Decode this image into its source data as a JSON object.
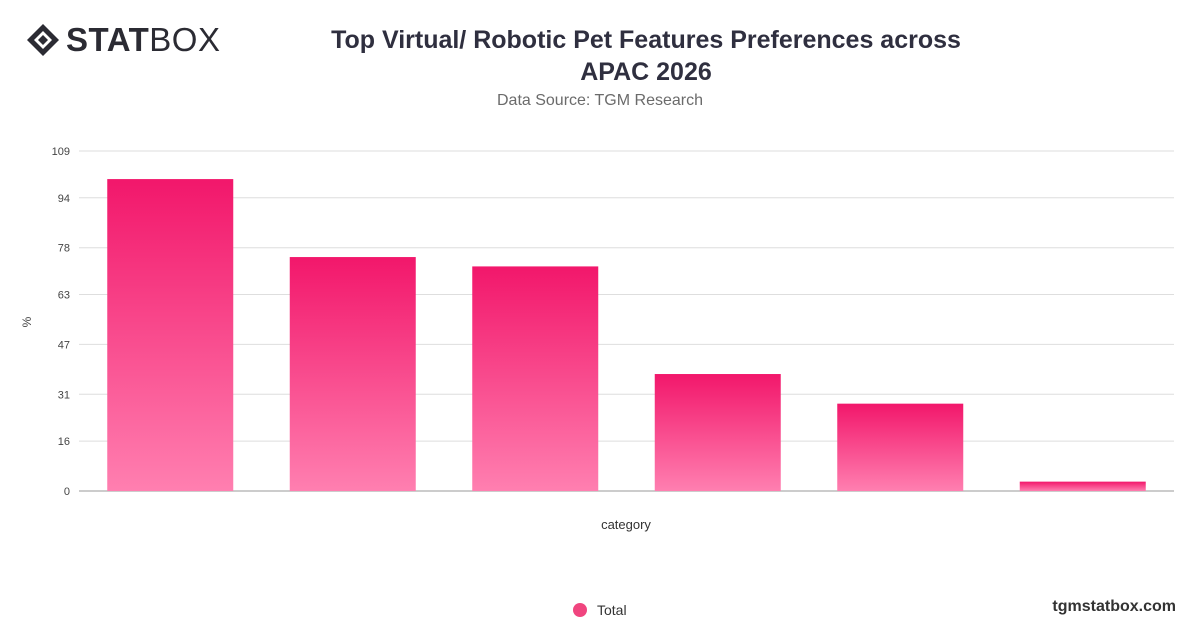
{
  "brand": {
    "logo_bold": "STAT",
    "logo_light": "BOX",
    "site": "tgmstatbox.com"
  },
  "colors": {
    "bar_top": "#f2176b",
    "bar_bottom": "#ff7fb0",
    "legend": "#f0457f"
  },
  "chart_data": {
    "type": "bar",
    "title_line1": "Top Virtual/ Robotic Pet Features Preferences across",
    "title_line2": "APAC 2026",
    "subtitle": "Data Source: TGM Research",
    "xlabel": "category",
    "ylabel": "%",
    "ylim": [
      0,
      109
    ],
    "yticks": [
      0,
      16,
      31,
      47,
      63,
      78,
      94,
      109
    ],
    "categories": [
      "",
      "",
      "",
      "",
      "",
      ""
    ],
    "series": [
      {
        "name": "Total",
        "values": [
          100,
          75,
          72,
          37.5,
          28,
          3
        ]
      }
    ],
    "grid": true,
    "legend_position": "bottom"
  }
}
